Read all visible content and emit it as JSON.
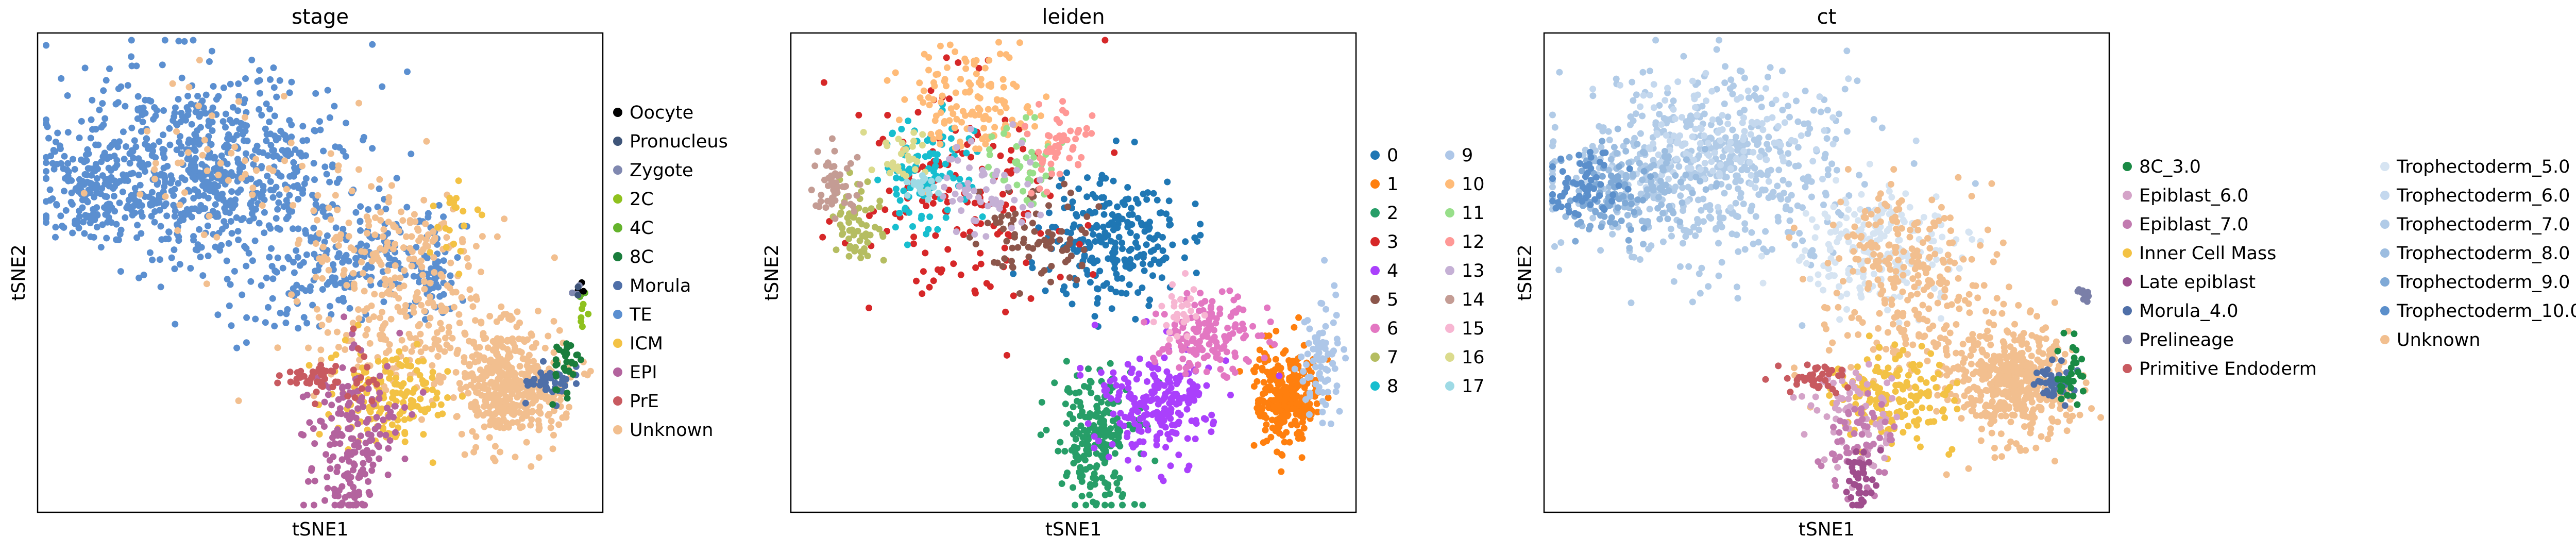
{
  "chart_data": [
    {
      "type": "scatter",
      "title": "stage",
      "xlabel": "tSNE1",
      "ylabel": "tSNE2",
      "grid": false,
      "legend_placement": "right",
      "legend_columns": 1,
      "legend": [
        {
          "label": "Oocyte",
          "color": "#000000"
        },
        {
          "label": "Pronucleus",
          "color": "#3f5579"
        },
        {
          "label": "Zygote",
          "color": "#8088b0"
        },
        {
          "label": "2C",
          "color": "#8fc11e"
        },
        {
          "label": "4C",
          "color": "#64b32c"
        },
        {
          "label": "8C",
          "color": "#1a7d3c"
        },
        {
          "label": "Morula",
          "color": "#4f6fa8"
        },
        {
          "label": "TE",
          "color": "#5b8fd0"
        },
        {
          "label": "ICM",
          "color": "#f3c244"
        },
        {
          "label": "EPI",
          "color": "#b3639e"
        },
        {
          "label": "PrE",
          "color": "#c85a60"
        },
        {
          "label": "Unknown",
          "color": "#f2bf8f"
        }
      ],
      "clusters": [
        {
          "group": "TE",
          "cx": 0.3,
          "cy": 0.28,
          "sx": 0.13,
          "sy": 0.1,
          "n": 700
        },
        {
          "group": "TE",
          "cx": 0.09,
          "cy": 0.33,
          "sx": 0.035,
          "sy": 0.05,
          "n": 140
        },
        {
          "group": "TE",
          "cx": 0.6,
          "cy": 0.46,
          "sx": 0.07,
          "sy": 0.06,
          "n": 120
        },
        {
          "group": "TE",
          "cx": 0.7,
          "cy": 0.51,
          "sx": 0.02,
          "sy": 0.04,
          "n": 50
        },
        {
          "group": "TE",
          "cx": 0.48,
          "cy": 0.5,
          "sx": 0.08,
          "sy": 0.07,
          "n": 90
        },
        {
          "group": "Unknown",
          "cx": 0.83,
          "cy": 0.73,
          "sx": 0.05,
          "sy": 0.06,
          "n": 420
        },
        {
          "group": "Unknown",
          "cx": 0.63,
          "cy": 0.45,
          "sx": 0.07,
          "sy": 0.06,
          "n": 150
        },
        {
          "group": "Unknown",
          "cx": 0.66,
          "cy": 0.62,
          "sx": 0.09,
          "sy": 0.07,
          "n": 160
        },
        {
          "group": "Unknown",
          "cx": 0.36,
          "cy": 0.3,
          "sx": 0.12,
          "sy": 0.09,
          "n": 60
        },
        {
          "group": "ICM",
          "cx": 0.62,
          "cy": 0.76,
          "sx": 0.05,
          "sy": 0.05,
          "n": 160
        },
        {
          "group": "ICM",
          "cx": 0.73,
          "cy": 0.4,
          "sx": 0.03,
          "sy": 0.05,
          "n": 20
        },
        {
          "group": "EPI",
          "cx": 0.55,
          "cy": 0.83,
          "sx": 0.04,
          "sy": 0.08,
          "n": 160
        },
        {
          "group": "EPI",
          "cx": 0.56,
          "cy": 0.97,
          "sx": 0.015,
          "sy": 0.04,
          "n": 30
        },
        {
          "group": "PrE",
          "cx": 0.48,
          "cy": 0.72,
          "sx": 0.03,
          "sy": 0.015,
          "n": 40
        },
        {
          "group": "PrE",
          "cx": 0.57,
          "cy": 0.67,
          "sx": 0.02,
          "sy": 0.05,
          "n": 15
        },
        {
          "group": "Morula",
          "cx": 0.905,
          "cy": 0.73,
          "sx": 0.02,
          "sy": 0.02,
          "n": 40
        },
        {
          "group": "8C",
          "cx": 0.935,
          "cy": 0.7,
          "sx": 0.012,
          "sy": 0.04,
          "n": 30
        },
        {
          "group": "4C",
          "cx": 0.96,
          "cy": 0.55,
          "sx": 0.006,
          "sy": 0.01,
          "n": 6
        },
        {
          "group": "2C",
          "cx": 0.965,
          "cy": 0.58,
          "sx": 0.006,
          "sy": 0.015,
          "n": 6
        },
        {
          "group": "Oocyte",
          "cx": 0.96,
          "cy": 0.53,
          "sx": 0.004,
          "sy": 0.006,
          "n": 3
        },
        {
          "group": "Zygote",
          "cx": 0.95,
          "cy": 0.54,
          "sx": 0.005,
          "sy": 0.008,
          "n": 3
        },
        {
          "group": "Pronucleus",
          "cx": 0.955,
          "cy": 0.535,
          "sx": 0.004,
          "sy": 0.006,
          "n": 2
        }
      ]
    },
    {
      "type": "scatter",
      "title": "leiden",
      "xlabel": "tSNE1",
      "ylabel": "tSNE2",
      "grid": false,
      "legend_placement": "right",
      "legend_columns": 2,
      "legend": [
        {
          "label": "0",
          "color": "#1f77b4"
        },
        {
          "label": "1",
          "color": "#ff7f0e"
        },
        {
          "label": "2",
          "color": "#279e68"
        },
        {
          "label": "3",
          "color": "#d62728"
        },
        {
          "label": "4",
          "color": "#aa40fc"
        },
        {
          "label": "5",
          "color": "#8c564b"
        },
        {
          "label": "6",
          "color": "#e377c2"
        },
        {
          "label": "7",
          "color": "#b5bd61"
        },
        {
          "label": "8",
          "color": "#17becf"
        },
        {
          "label": "9",
          "color": "#aec7e8"
        },
        {
          "label": "10",
          "color": "#ffbb78"
        },
        {
          "label": "11",
          "color": "#98df8a"
        },
        {
          "label": "12",
          "color": "#ff9896"
        },
        {
          "label": "13",
          "color": "#c5b0d5"
        },
        {
          "label": "14",
          "color": "#c49c94"
        },
        {
          "label": "15",
          "color": "#f7b6d2"
        },
        {
          "label": "16",
          "color": "#dbdb8d"
        },
        {
          "label": "17",
          "color": "#9edae5"
        }
      ],
      "clusters": [
        {
          "group": "0",
          "cx": 0.57,
          "cy": 0.44,
          "sx": 0.06,
          "sy": 0.07,
          "n": 240
        },
        {
          "group": "1",
          "cx": 0.88,
          "cy": 0.75,
          "sx": 0.03,
          "sy": 0.05,
          "n": 260
        },
        {
          "group": "2",
          "cx": 0.54,
          "cy": 0.85,
          "sx": 0.035,
          "sy": 0.07,
          "n": 200
        },
        {
          "group": "3",
          "cx": 0.3,
          "cy": 0.34,
          "sx": 0.1,
          "sy": 0.12,
          "n": 150
        },
        {
          "group": "4",
          "cx": 0.65,
          "cy": 0.77,
          "sx": 0.05,
          "sy": 0.06,
          "n": 220
        },
        {
          "group": "5",
          "cx": 0.43,
          "cy": 0.42,
          "sx": 0.05,
          "sy": 0.05,
          "n": 80
        },
        {
          "group": "6",
          "cx": 0.74,
          "cy": 0.63,
          "sx": 0.045,
          "sy": 0.04,
          "n": 150
        },
        {
          "group": "7",
          "cx": 0.12,
          "cy": 0.4,
          "sx": 0.025,
          "sy": 0.04,
          "n": 60
        },
        {
          "group": "8",
          "cx": 0.24,
          "cy": 0.3,
          "sx": 0.04,
          "sy": 0.06,
          "n": 100
        },
        {
          "group": "9",
          "cx": 0.94,
          "cy": 0.68,
          "sx": 0.02,
          "sy": 0.07,
          "n": 80
        },
        {
          "group": "10",
          "cx": 0.31,
          "cy": 0.15,
          "sx": 0.06,
          "sy": 0.06,
          "n": 130
        },
        {
          "group": "11",
          "cx": 0.4,
          "cy": 0.27,
          "sx": 0.04,
          "sy": 0.04,
          "n": 40
        },
        {
          "group": "12",
          "cx": 0.47,
          "cy": 0.22,
          "sx": 0.03,
          "sy": 0.04,
          "n": 50
        },
        {
          "group": "13",
          "cx": 0.34,
          "cy": 0.32,
          "sx": 0.05,
          "sy": 0.05,
          "n": 60
        },
        {
          "group": "14",
          "cx": 0.08,
          "cy": 0.32,
          "sx": 0.02,
          "sy": 0.03,
          "n": 50
        },
        {
          "group": "15",
          "cx": 0.69,
          "cy": 0.58,
          "sx": 0.02,
          "sy": 0.03,
          "n": 30
        },
        {
          "group": "16",
          "cx": 0.2,
          "cy": 0.26,
          "sx": 0.03,
          "sy": 0.03,
          "n": 30
        },
        {
          "group": "17",
          "cx": 0.24,
          "cy": 0.32,
          "sx": 0.02,
          "sy": 0.02,
          "n": 20
        }
      ]
    },
    {
      "type": "scatter",
      "title": "ct",
      "xlabel": "tSNE1",
      "ylabel": "tSNE2",
      "grid": false,
      "legend_placement": "right",
      "legend_columns": 2,
      "legend": [
        {
          "label": "8C_3.0",
          "color": "#1a8a45"
        },
        {
          "label": "Epiblast_6.0",
          "color": "#d4a3c8"
        },
        {
          "label": "Epiblast_7.0",
          "color": "#c27bb0"
        },
        {
          "label": "Inner Cell Mass",
          "color": "#f3c244"
        },
        {
          "label": "Late epiblast",
          "color": "#9f4d8d"
        },
        {
          "label": "Morula_4.0",
          "color": "#4f6fa8"
        },
        {
          "label": "Prelineage",
          "color": "#7a7fa8"
        },
        {
          "label": "Primitive Endoderm",
          "color": "#c85a60"
        },
        {
          "label": "Trophectoderm_5.0",
          "color": "#d6e4f2"
        },
        {
          "label": "Trophectoderm_6.0",
          "color": "#c4d8ee"
        },
        {
          "label": "Trophectoderm_7.0",
          "color": "#b1cbe7"
        },
        {
          "label": "Trophectoderm_8.0",
          "color": "#9cbde0"
        },
        {
          "label": "Trophectoderm_9.0",
          "color": "#7fa9d6"
        },
        {
          "label": "Trophectoderm_10.0",
          "color": "#5b8fcb"
        },
        {
          "label": "Unknown",
          "color": "#f2bf8f"
        }
      ],
      "clusters": [
        {
          "group": "Trophectoderm_7.0",
          "cx": 0.3,
          "cy": 0.28,
          "sx": 0.13,
          "sy": 0.1,
          "n": 500
        },
        {
          "group": "Trophectoderm_6.0",
          "cx": 0.3,
          "cy": 0.22,
          "sx": 0.1,
          "sy": 0.06,
          "n": 150
        },
        {
          "group": "Trophectoderm_5.0",
          "cx": 0.6,
          "cy": 0.45,
          "sx": 0.07,
          "sy": 0.06,
          "n": 200
        },
        {
          "group": "Trophectoderm_8.0",
          "cx": 0.18,
          "cy": 0.32,
          "sx": 0.06,
          "sy": 0.05,
          "n": 100
        },
        {
          "group": "Trophectoderm_9.0",
          "cx": 0.1,
          "cy": 0.34,
          "sx": 0.04,
          "sy": 0.04,
          "n": 80
        },
        {
          "group": "Trophectoderm_10.0",
          "cx": 0.07,
          "cy": 0.33,
          "sx": 0.03,
          "sy": 0.04,
          "n": 60
        },
        {
          "group": "Unknown",
          "cx": 0.83,
          "cy": 0.73,
          "sx": 0.05,
          "sy": 0.06,
          "n": 420
        },
        {
          "group": "Unknown",
          "cx": 0.63,
          "cy": 0.45,
          "sx": 0.07,
          "sy": 0.06,
          "n": 150
        },
        {
          "group": "Unknown",
          "cx": 0.66,
          "cy": 0.62,
          "sx": 0.09,
          "sy": 0.07,
          "n": 160
        },
        {
          "group": "Inner Cell Mass",
          "cx": 0.62,
          "cy": 0.76,
          "sx": 0.05,
          "sy": 0.05,
          "n": 150
        },
        {
          "group": "Epiblast_6.0",
          "cx": 0.55,
          "cy": 0.8,
          "sx": 0.04,
          "sy": 0.06,
          "n": 70
        },
        {
          "group": "Epiblast_7.0",
          "cx": 0.56,
          "cy": 0.86,
          "sx": 0.03,
          "sy": 0.05,
          "n": 60
        },
        {
          "group": "Late epiblast",
          "cx": 0.56,
          "cy": 0.94,
          "sx": 0.015,
          "sy": 0.04,
          "n": 40
        },
        {
          "group": "Primitive Endoderm",
          "cx": 0.48,
          "cy": 0.72,
          "sx": 0.03,
          "sy": 0.015,
          "n": 40
        },
        {
          "group": "Morula_4.0",
          "cx": 0.905,
          "cy": 0.73,
          "sx": 0.02,
          "sy": 0.02,
          "n": 40
        },
        {
          "group": "Prelineage",
          "cx": 0.955,
          "cy": 0.55,
          "sx": 0.006,
          "sy": 0.012,
          "n": 10
        },
        {
          "group": "8C_3.0",
          "cx": 0.935,
          "cy": 0.7,
          "sx": 0.012,
          "sy": 0.04,
          "n": 30
        }
      ]
    }
  ]
}
